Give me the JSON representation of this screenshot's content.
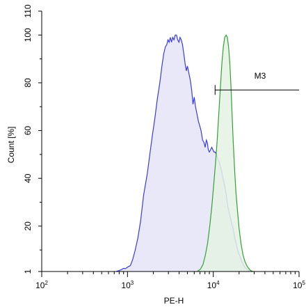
{
  "chart_data": {
    "type": "area",
    "xlabel": "PE-H",
    "ylabel": "Count [%]",
    "x_scale": "log",
    "xlim": [
      100,
      100000
    ],
    "ylim": [
      1,
      110
    ],
    "x_ticks": [
      {
        "value": 100,
        "base": "10",
        "exp": "2"
      },
      {
        "value": 1000,
        "base": "10",
        "exp": "3"
      },
      {
        "value": 10000,
        "base": "10",
        "exp": "4"
      },
      {
        "value": 100000,
        "base": "10",
        "exp": "5"
      }
    ],
    "y_ticks": [
      {
        "value": 1,
        "label": "1"
      },
      {
        "value": 20,
        "label": "20"
      },
      {
        "value": 40,
        "label": "40"
      },
      {
        "value": 60,
        "label": "60"
      },
      {
        "value": 80,
        "label": "80"
      },
      {
        "value": 100,
        "label": "100"
      },
      {
        "value": 110,
        "label": "110"
      }
    ],
    "series": [
      {
        "color": "#3b3bdc",
        "fill": "#e4e4f8",
        "points": [
          [
            740,
            1
          ],
          [
            800,
            1.4
          ],
          [
            850,
            1.8
          ],
          [
            900,
            2.3
          ],
          [
            950,
            2.2
          ],
          [
            1000,
            2.8
          ],
          [
            1080,
            3.5
          ],
          [
            1150,
            6
          ],
          [
            1230,
            10
          ],
          [
            1320,
            15
          ],
          [
            1420,
            22
          ],
          [
            1540,
            33
          ],
          [
            1700,
            42
          ],
          [
            1820,
            50
          ],
          [
            1950,
            58
          ],
          [
            2080,
            65
          ],
          [
            2220,
            73
          ],
          [
            2380,
            80
          ],
          [
            2520,
            87
          ],
          [
            2640,
            92
          ],
          [
            2760,
            95
          ],
          [
            2870,
            96
          ],
          [
            2960,
            98
          ],
          [
            3060,
            97
          ],
          [
            3150,
            99
          ],
          [
            3260,
            97
          ],
          [
            3360,
            99
          ],
          [
            3480,
            98
          ],
          [
            3600,
            100
          ],
          [
            3720,
            100
          ],
          [
            3850,
            98
          ],
          [
            3980,
            97
          ],
          [
            4100,
            99
          ],
          [
            4230,
            98
          ],
          [
            4380,
            96
          ],
          [
            4540,
            92
          ],
          [
            4700,
            88
          ],
          [
            4850,
            85
          ],
          [
            5000,
            87
          ],
          [
            5200,
            84
          ],
          [
            5400,
            81
          ],
          [
            5600,
            77
          ],
          [
            5800,
            71
          ],
          [
            6000,
            74
          ],
          [
            6200,
            70
          ],
          [
            6450,
            67
          ],
          [
            6700,
            64
          ],
          [
            6950,
            62
          ],
          [
            7200,
            60
          ],
          [
            7500,
            56
          ],
          [
            7800,
            55
          ],
          [
            8050,
            53
          ],
          [
            8300,
            56
          ],
          [
            8500,
            55
          ],
          [
            8750,
            52
          ],
          [
            9000,
            51
          ],
          [
            9300,
            52
          ],
          [
            9600,
            53
          ],
          [
            9900,
            52
          ],
          [
            10200,
            51
          ],
          [
            10500,
            51
          ],
          [
            10900,
            50
          ],
          [
            11300,
            48
          ],
          [
            11700,
            47
          ],
          [
            12100,
            45
          ],
          [
            12500,
            43
          ],
          [
            13000,
            40
          ],
          [
            13600,
            37
          ],
          [
            14200,
            33
          ],
          [
            14800,
            28
          ],
          [
            15500,
            25
          ],
          [
            16200,
            22
          ],
          [
            17000,
            19
          ],
          [
            17800,
            15
          ],
          [
            18700,
            12
          ],
          [
            19600,
            9
          ],
          [
            20600,
            7
          ],
          [
            21700,
            5
          ],
          [
            23000,
            3
          ],
          [
            24500,
            2
          ],
          [
            26000,
            1.3
          ],
          [
            28000,
            1
          ]
        ]
      },
      {
        "color": "#33a033",
        "fill": "#e4f2e4",
        "points": [
          [
            6500,
            1
          ],
          [
            7100,
            2
          ],
          [
            7600,
            4
          ],
          [
            8100,
            8
          ],
          [
            8600,
            13
          ],
          [
            9100,
            20
          ],
          [
            9600,
            28
          ],
          [
            10100,
            37
          ],
          [
            10600,
            46
          ],
          [
            11100,
            56
          ],
          [
            11600,
            67
          ],
          [
            12100,
            78
          ],
          [
            12600,
            88
          ],
          [
            13100,
            95
          ],
          [
            13600,
            99
          ],
          [
            14100,
            100
          ],
          [
            14600,
            99
          ],
          [
            15100,
            95
          ],
          [
            15600,
            88
          ],
          [
            16100,
            78
          ],
          [
            16600,
            66
          ],
          [
            17100,
            55
          ],
          [
            17700,
            44
          ],
          [
            18400,
            34
          ],
          [
            19200,
            26
          ],
          [
            20000,
            19
          ],
          [
            21000,
            13
          ],
          [
            22200,
            8
          ],
          [
            23500,
            5
          ],
          [
            25000,
            3
          ],
          [
            27000,
            1.5
          ],
          [
            29000,
            1
          ]
        ]
      }
    ],
    "gate": {
      "label": "M3",
      "x_start": 10500,
      "x_end": 100000,
      "y": 77
    }
  }
}
